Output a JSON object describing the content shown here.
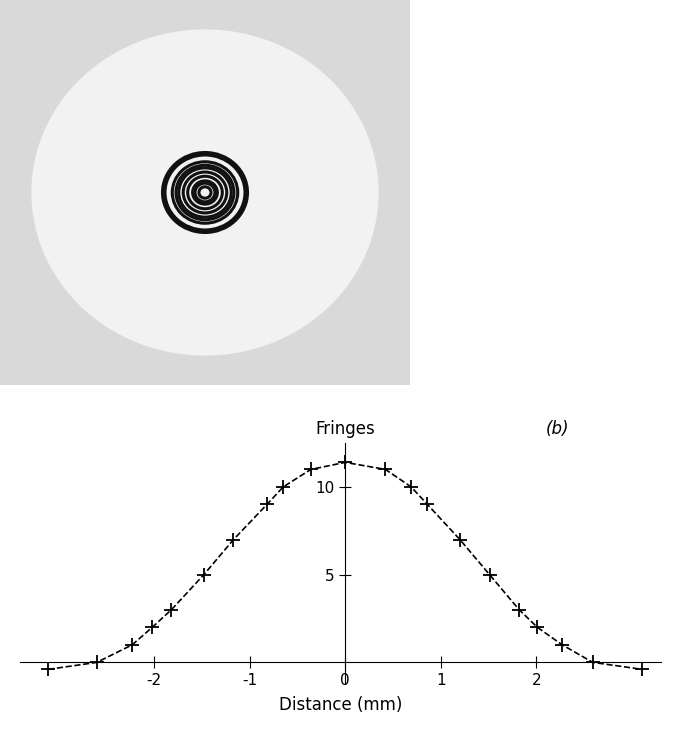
{
  "chart_data": {
    "type": "line",
    "panel_label": "(b)",
    "x_label": "Distance (mm)",
    "y_label": "Fringes",
    "x": [
      -3.11,
      -2.6,
      -2.23,
      -2.02,
      -1.82,
      -1.48,
      -1.17,
      -0.82,
      -0.65,
      -0.36,
      0,
      0.42,
      0.69,
      0.86,
      1.2,
      1.51,
      1.82,
      2.01,
      2.27,
      2.59,
      3.11
    ],
    "series": [
      {
        "color": "#000000",
        "marker": "+",
        "line_style": "dashed",
        "values": [
          -0.4,
          0,
          1,
          2,
          3,
          5,
          7,
          9,
          10,
          11,
          11.4,
          11,
          10,
          9,
          7,
          5,
          3,
          2,
          1,
          0,
          -0.4
        ]
      }
    ],
    "xlim": [
      -3.4,
      3.3
    ],
    "ylim": [
      -1.2,
      12.5
    ],
    "xticks": [
      -2,
      -1,
      0,
      1,
      2
    ],
    "yticks": [
      5,
      10
    ],
    "grid": false
  }
}
